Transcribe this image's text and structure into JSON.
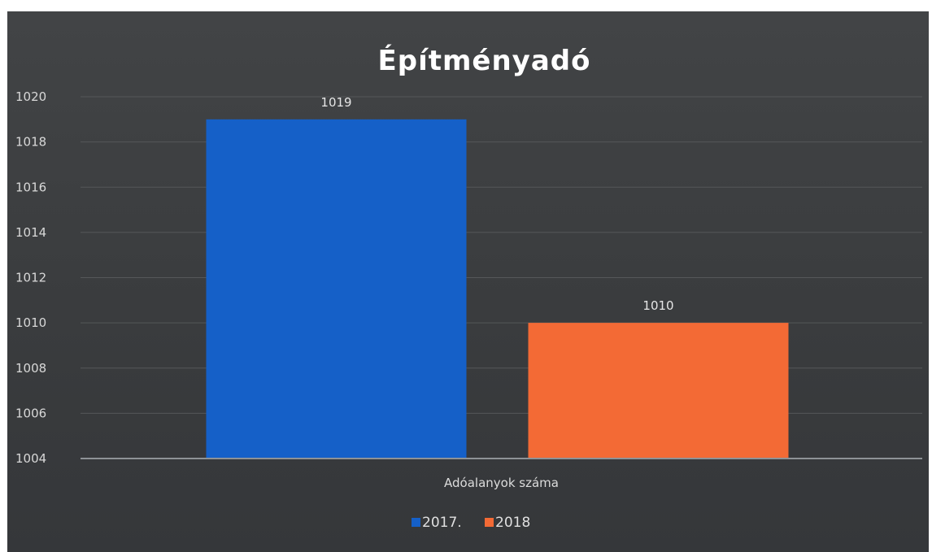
{
  "chart_data": {
    "type": "bar",
    "title": "Építményadó",
    "categories": [
      "Adóalanyok száma"
    ],
    "series": [
      {
        "name": "2017.",
        "values": [
          1019
        ],
        "color": "#1560c8"
      },
      {
        "name": "2018",
        "values": [
          1010
        ],
        "color": "#f36a35"
      }
    ],
    "ylim": [
      1004,
      1020
    ],
    "yticks": [
      1004,
      1006,
      1008,
      1010,
      1012,
      1014,
      1016,
      1018,
      1020
    ],
    "ytick_labels": [
      "1004",
      "1006",
      "1008",
      "1010",
      "1012",
      "1014",
      "1016",
      "1018",
      "1020"
    ],
    "data_labels": [
      "1019",
      "1010"
    ],
    "grid": true,
    "legend_position": "bottom",
    "colors": {
      "background": "#3c3e40",
      "gridline": "#555759",
      "axis_line": "#8e9296"
    }
  }
}
